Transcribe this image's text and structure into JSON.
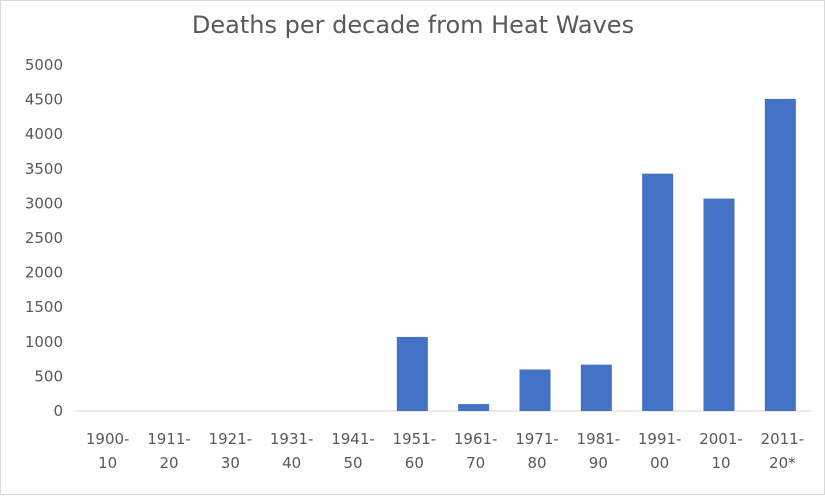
{
  "chart_data": {
    "type": "bar",
    "title": "Deaths per decade from Heat Waves",
    "xlabel": "",
    "ylabel": "",
    "categories": [
      [
        "1900-",
        "10"
      ],
      [
        "1911-",
        "20"
      ],
      [
        "1921-",
        "30"
      ],
      [
        "1931-",
        "40"
      ],
      [
        "1941-",
        "50"
      ],
      [
        "1951-",
        "60"
      ],
      [
        "1961-",
        "70"
      ],
      [
        "1971-",
        "80"
      ],
      [
        "1981-",
        "90"
      ],
      [
        "1991-",
        "00"
      ],
      [
        "2001-",
        "10"
      ],
      [
        "2011-",
        "20*"
      ]
    ],
    "values": [
      0,
      0,
      0,
      0,
      0,
      1070,
      100,
      600,
      670,
      3430,
      3070,
      4510
    ],
    "ylim": [
      0,
      5000
    ],
    "yticks": [
      0,
      500,
      1000,
      1500,
      2000,
      2500,
      3000,
      3500,
      4000,
      4500,
      5000
    ],
    "grid": false,
    "legend": "none",
    "bar_color": "#4472c4",
    "axis_color": "#d9d9d9"
  }
}
